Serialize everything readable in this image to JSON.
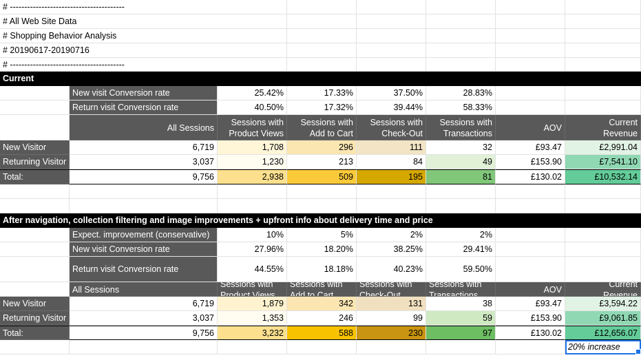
{
  "meta_lines": [
    "# ----------------------------------------",
    "# All Web Site Data",
    "# Shopping Behavior Analysis",
    "# 20190617-20190716",
    "# ----------------------------------------"
  ],
  "current": {
    "title": "Current",
    "rate_rows": [
      {
        "label": "New visit Conversion rate",
        "values": [
          "25.42%",
          "17.33%",
          "37.50%",
          "28.83%"
        ]
      },
      {
        "label": "Return visit Conversion rate",
        "values": [
          "40.50%",
          "17.32%",
          "39.44%",
          "58.33%"
        ]
      }
    ],
    "headers": [
      "All Sessions",
      "Sessions with Product Views",
      "Sessions with Add to Cart",
      "Sessions with Check-Out",
      "Sessions with Transactions",
      "AOV",
      "Current Revenue"
    ],
    "header_lines": [
      [
        "All Sessions"
      ],
      [
        "Sessions with",
        "Product Views"
      ],
      [
        "Sessions with",
        "Add to Cart"
      ],
      [
        "Sessions with",
        "Check-Out"
      ],
      [
        "Sessions with",
        "Transactions"
      ],
      [
        "AOV"
      ],
      [
        "Current",
        "Revenue"
      ]
    ],
    "rows": [
      {
        "label": "New Visitor",
        "values": [
          "6,719",
          "1,708",
          "296",
          "111",
          "32",
          "£93.47",
          "£2,991.04"
        ]
      },
      {
        "label": "Returning Visitor",
        "values": [
          "3,037",
          "1,230",
          "213",
          "84",
          "49",
          "£153.90",
          "£7,541.10"
        ]
      },
      {
        "label": "Total:",
        "values": [
          "9,756",
          "2,938",
          "509",
          "195",
          "81",
          "£130.02",
          "£10,532.14"
        ]
      }
    ]
  },
  "after": {
    "title": "After navigation, collection filtering and image improvements + upfront info about delivery time and price",
    "rate_rows": [
      {
        "label": "Expect. improvement (conservative)",
        "values": [
          "10%",
          "5%",
          "2%",
          "2%"
        ]
      },
      {
        "label": "New visit Conversion rate",
        "values": [
          "27.96%",
          "18.20%",
          "38.25%",
          "29.41%"
        ]
      },
      {
        "label": "Return visit Conversion rate",
        "values": [
          "44.55%",
          "18.18%",
          "40.23%",
          "59.50%"
        ]
      }
    ],
    "headers": [
      "All Sessions",
      "Sessions with Product Views",
      "Sessions with Add to Cart",
      "Sessions with Check-Out",
      "Sessions with Transactions",
      "AOV",
      "Current Revenue"
    ],
    "header_lines": [
      [
        "All Sessions"
      ],
      [
        "Sessions with",
        "Product Views"
      ],
      [
        "Sessions with",
        "Add to Cart"
      ],
      [
        "Sessions with",
        "Check-Out"
      ],
      [
        "Sessions with",
        "Transactions"
      ],
      [
        "AOV"
      ],
      [
        "Current",
        "Revenue"
      ]
    ],
    "rows": [
      {
        "label": "New Visitor",
        "values": [
          "6,719",
          "1,879",
          "342",
          "131",
          "38",
          "£93.47",
          "£3,594.22"
        ]
      },
      {
        "label": "Returning Visitor",
        "values": [
          "3,037",
          "1,353",
          "246",
          "99",
          "59",
          "£153.90",
          "£9,061.85"
        ]
      },
      {
        "label": "Total:",
        "values": [
          "9,756",
          "3,232",
          "588",
          "230",
          "97",
          "£130.02",
          "£12,656.07"
        ]
      }
    ]
  },
  "note": "20% increase",
  "colors": {
    "current": [
      [
        "#ffffff",
        "#fff6d8",
        "#fbe6b2",
        "#f2e4c4",
        "#ffffff",
        "#ffffff",
        "#e1f3e4"
      ],
      [
        "#ffffff",
        "#fffcf1",
        "#ffffff",
        "#ffffff",
        "#e1f1d8",
        "#ffffff",
        "#8fd8b3"
      ],
      [
        "#ffffff",
        "#fce08e",
        "#fbca3a",
        "#d5a800",
        "#80c77a",
        "#ffffff",
        "#63cc99"
      ]
    ],
    "after": [
      [
        "#ffffff",
        "#fff3cf",
        "#fbe6b2",
        "#f1e0bf",
        "#ffffff",
        "#ffffff",
        "#e1f3e4"
      ],
      [
        "#ffffff",
        "#fffcf1",
        "#ffffff",
        "#ffffff",
        "#cfe9c3",
        "#ffffff",
        "#8fd8b3"
      ],
      [
        "#ffffff",
        "#fce08e",
        "#f8c200",
        "#c99411",
        "#6dbd63",
        "#ffffff",
        "#63cc99"
      ]
    ]
  }
}
